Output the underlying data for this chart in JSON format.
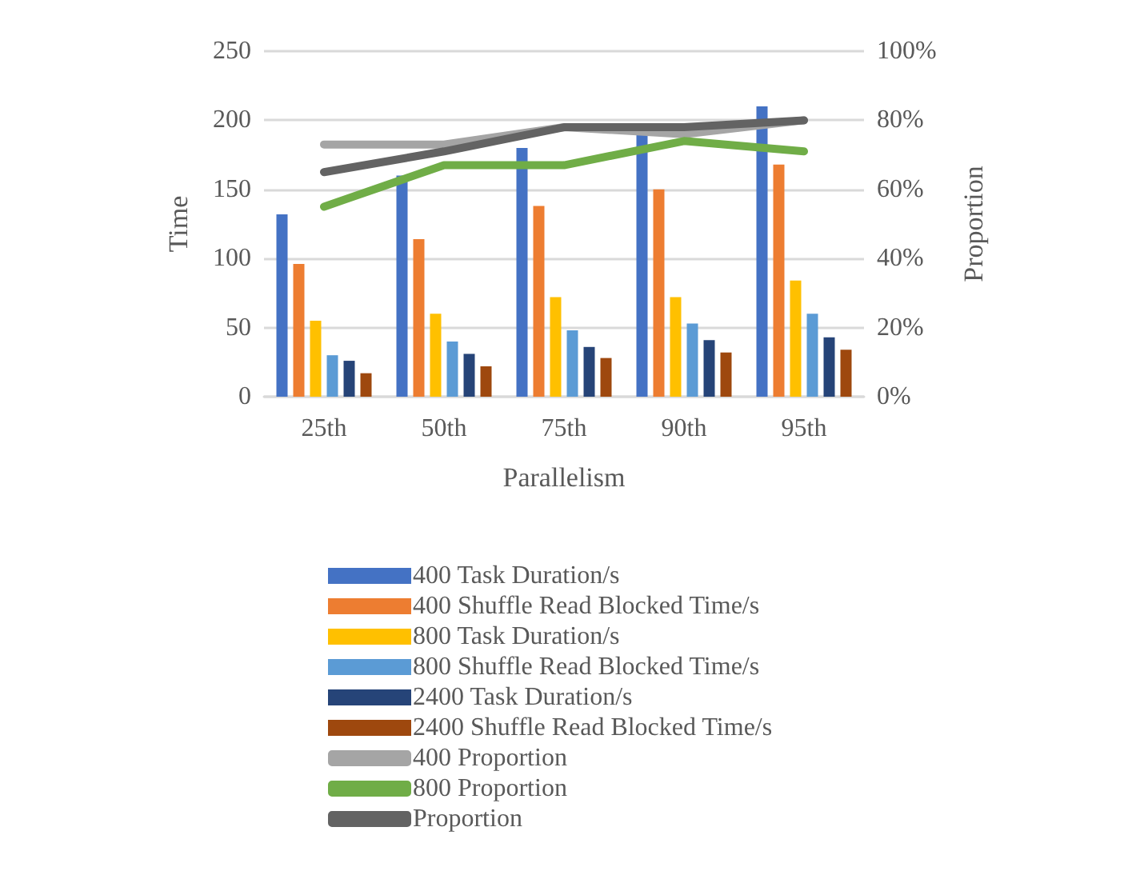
{
  "chart_data": {
    "type": "bar",
    "xlabel": "Parallelism",
    "ylabel": "Time",
    "y2label": "Proportion",
    "categories": [
      "25th",
      "50th",
      "75th",
      "90th",
      "95th"
    ],
    "series": [
      {
        "name": "400 Task Duration/s",
        "color": "#4472c4",
        "values": [
          132,
          160,
          180,
          191,
          210
        ]
      },
      {
        "name": "400 Shuffle Read Blocked Time/s",
        "color": "#ed7d31",
        "values": [
          96,
          114,
          138,
          150,
          168
        ]
      },
      {
        "name": "800 Task Duration/s",
        "color": "#ffc000",
        "values": [
          55,
          60,
          72,
          72,
          84
        ]
      },
      {
        "name": "800 Shuffle Read Blocked Time/s",
        "color": "#5b9bd5",
        "values": [
          30,
          40,
          48,
          53,
          60
        ]
      },
      {
        "name": "2400 Task Duration/s",
        "color": "#264478",
        "values": [
          26,
          31,
          36,
          41,
          43
        ]
      },
      {
        "name": "2400 Shuffle Read Blocked Time/s",
        "color": "#9e480e",
        "values": [
          17,
          22,
          28,
          32,
          34
        ]
      },
      {
        "name": "400 Proportion",
        "type": "line",
        "axis": "y2",
        "color": "#a5a5a5",
        "values": [
          73,
          73,
          78,
          76,
          80
        ]
      },
      {
        "name": "800 Proportion",
        "type": "line",
        "axis": "y2",
        "color": "#70ad47",
        "values": [
          55,
          67,
          67,
          74,
          71
        ]
      },
      {
        "name": "Proportion",
        "type": "line",
        "axis": "y2",
        "color": "#636363",
        "values": [
          65,
          71,
          78,
          78,
          80
        ]
      }
    ],
    "ylim": [
      0,
      250
    ],
    "yticks": [
      0,
      50,
      100,
      150,
      200,
      250
    ],
    "y2lim": [
      0,
      100
    ],
    "y2ticks": [
      {
        "value": 0,
        "label": "0%"
      },
      {
        "value": 20,
        "label": "20%"
      },
      {
        "value": 40,
        "label": "40%"
      },
      {
        "value": 60,
        "label": "60%"
      },
      {
        "value": 80,
        "label": "80%"
      },
      {
        "value": 100,
        "label": "100%"
      }
    ],
    "grid": "y",
    "legend": "bottom",
    "marker": "none"
  }
}
